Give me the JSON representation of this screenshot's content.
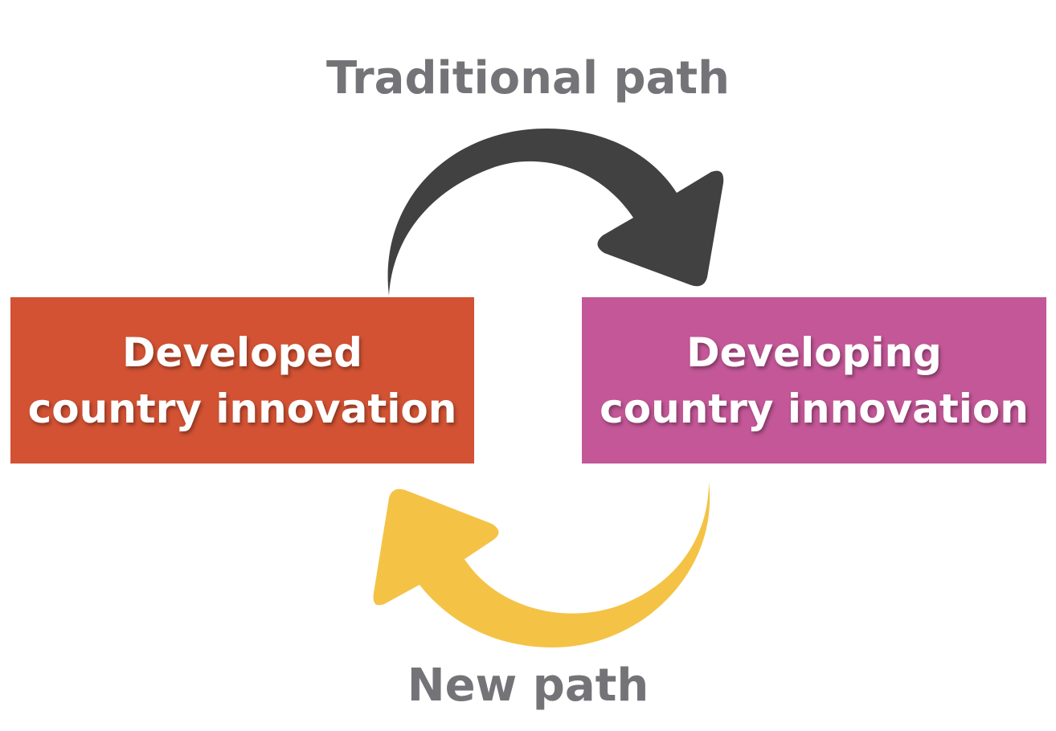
{
  "diagram": {
    "top_label": "Traditional path",
    "bottom_label": "New path",
    "left_box": {
      "line1": "Developed",
      "line2": "country innovation",
      "color": "#d25233"
    },
    "right_box": {
      "line1": "Developing",
      "line2": "country innovation",
      "color": "#c35797"
    },
    "colors": {
      "label_text": "#747478",
      "traditional_arrow": "#414141",
      "new_arrow": "#f4c346"
    }
  }
}
